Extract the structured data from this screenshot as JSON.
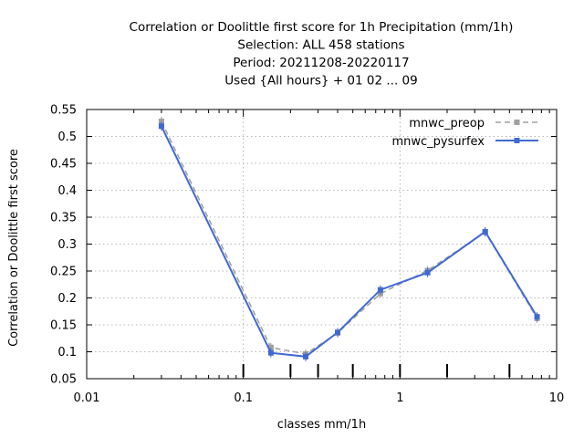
{
  "chart_data": {
    "type": "line",
    "title": [
      "Correlation or Doolittle first score  for 1h Precipitation (mm/1h)",
      "Selection: ALL    458 stations",
      "Period: 20211208-20220117",
      "Used {All hours} + 01 02 ... 09"
    ],
    "xlabel": "classes mm/1h",
    "ylabel": "Correlation or Doolittle first score",
    "x_scale": "log",
    "xlim": [
      0.01,
      10
    ],
    "ylim": [
      0.05,
      0.55
    ],
    "x_ticks": [
      {
        "value": 0.01,
        "label": "0.01"
      },
      {
        "value": 0.1,
        "label": "0.1"
      },
      {
        "value": 1,
        "label": "1"
      },
      {
        "value": 10,
        "label": "10"
      }
    ],
    "y_ticks": [
      {
        "value": 0.05,
        "label": "0.05"
      },
      {
        "value": 0.1,
        "label": "0.1"
      },
      {
        "value": 0.15,
        "label": "0.15"
      },
      {
        "value": 0.2,
        "label": "0.2"
      },
      {
        "value": 0.25,
        "label": "0.25"
      },
      {
        "value": 0.3,
        "label": "0.3"
      },
      {
        "value": 0.35,
        "label": "0.35"
      },
      {
        "value": 0.4,
        "label": "0.4"
      },
      {
        "value": 0.45,
        "label": "0.45"
      },
      {
        "value": 0.5,
        "label": "0.5"
      },
      {
        "value": 0.55,
        "label": "0.55"
      }
    ],
    "class_limits": [
      0.1,
      0.2,
      0.3,
      0.5,
      1,
      2,
      5
    ],
    "grid": true,
    "legend_position": "top-right",
    "series": [
      {
        "name": "mnwc_preop",
        "color": "#a0a0a0",
        "dashed": true,
        "x": [
          0.03,
          0.15,
          0.25,
          0.4,
          0.75,
          1.5,
          3.5,
          7.5
        ],
        "y": [
          0.528,
          0.108,
          0.096,
          0.135,
          0.208,
          0.251,
          0.322,
          0.162
        ]
      },
      {
        "name": "mnwc_pysurfex",
        "color": "#4169cf",
        "dashed": false,
        "x": [
          0.03,
          0.15,
          0.25,
          0.4,
          0.75,
          1.5,
          3.5,
          7.5
        ],
        "y": [
          0.519,
          0.098,
          0.091,
          0.136,
          0.215,
          0.247,
          0.323,
          0.165
        ]
      }
    ]
  }
}
